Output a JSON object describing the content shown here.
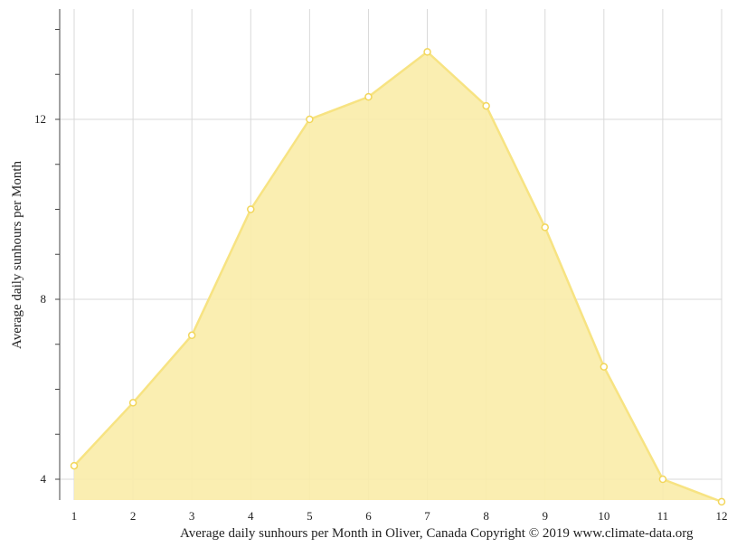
{
  "chart_data": {
    "type": "area",
    "x": [
      1,
      2,
      3,
      4,
      5,
      6,
      7,
      8,
      9,
      10,
      11,
      12
    ],
    "x_tick_labels": [
      "1",
      "2",
      "3",
      "4",
      "5",
      "6",
      "7",
      "8",
      "9",
      "10",
      "11",
      "12"
    ],
    "series": [
      {
        "values": [
          4.3,
          5.7,
          7.2,
          10.0,
          12.0,
          12.5,
          13.5,
          12.3,
          9.6,
          6.5,
          4.0,
          3.5
        ]
      }
    ],
    "ylabel": "Average daily sunhours per Month",
    "y_tick_labels": [
      "4",
      "8",
      "12"
    ],
    "y_ticks": [
      4,
      8,
      12
    ],
    "y_minor_ticks": [
      4,
      5,
      6,
      7,
      8,
      9,
      10,
      11,
      12,
      13,
      14
    ],
    "ylim": [
      3.5,
      14.5
    ],
    "xlim": [
      1,
      12
    ],
    "grid": true,
    "colors": {
      "fill": "#f9eca8",
      "line": "#f7e382",
      "marker_stroke": "#f2d65a",
      "grid": "#d9d9d9",
      "axis": "#444444"
    }
  },
  "footer": {
    "caption": "Average daily sunhours per Month in Oliver, Canada Copyright © 2019 www.climate-data.org"
  }
}
